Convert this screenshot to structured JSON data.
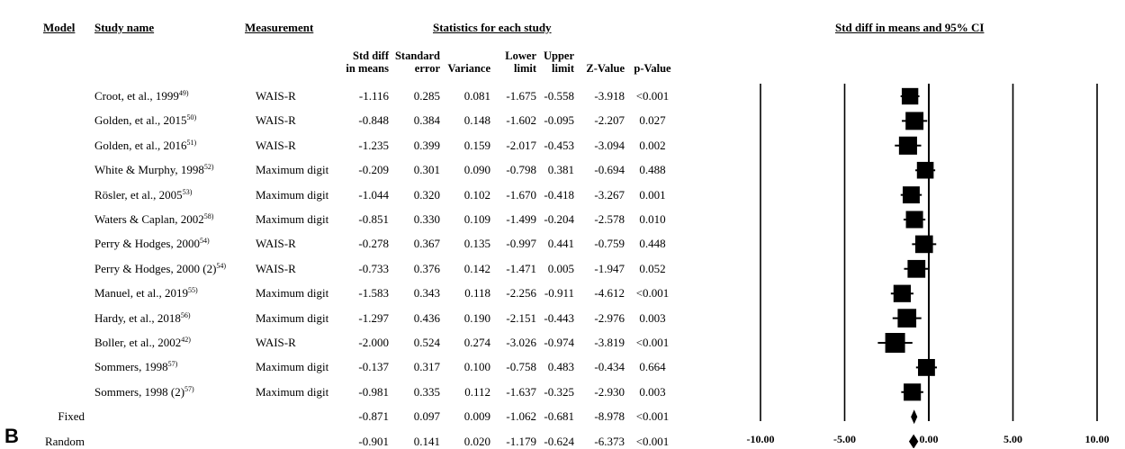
{
  "headers": {
    "model": "Model",
    "study_name": "Study name",
    "measurement": "Measurement",
    "statistics": "Statistics for each study",
    "plot": "Std diff in means and 95% CI"
  },
  "subheaders": {
    "std_diff": [
      "Std diff",
      "in means"
    ],
    "std_error": [
      "Standard",
      "error"
    ],
    "variance": "Variance",
    "lower": [
      "Lower",
      "limit"
    ],
    "upper": [
      "Upper",
      "limit"
    ],
    "z": "Z-Value",
    "p": "p-Value"
  },
  "panel_letter": "B",
  "rows": [
    {
      "model": "",
      "study": "Croot, et al., 1999",
      "ref": "49)",
      "measurement": "WAIS-R",
      "std_diff": "-1.116",
      "se": "0.285",
      "variance": "0.081",
      "lower": "-1.675",
      "upper": "-0.558",
      "z": "-3.918",
      "p": "<0.001"
    },
    {
      "model": "",
      "study": "Golden, et al., 2015",
      "ref": "50)",
      "measurement": "WAIS-R",
      "std_diff": "-0.848",
      "se": "0.384",
      "variance": "0.148",
      "lower": "-1.602",
      "upper": "-0.095",
      "z": "-2.207",
      "p": "0.027"
    },
    {
      "model": "",
      "study": "Golden, et al., 2016",
      "ref": "51)",
      "measurement": "WAIS-R",
      "std_diff": "-1.235",
      "se": "0.399",
      "variance": "0.159",
      "lower": "-2.017",
      "upper": "-0.453",
      "z": "-3.094",
      "p": "0.002"
    },
    {
      "model": "",
      "study": "White & Murphy, 1998",
      "ref": "52)",
      "measurement": "Maximum digit",
      "std_diff": "-0.209",
      "se": "0.301",
      "variance": "0.090",
      "lower": "-0.798",
      "upper": "0.381",
      "z": "-0.694",
      "p": "0.488"
    },
    {
      "model": "",
      "study": "Rösler, et al., 2005",
      "ref": "53)",
      "measurement": "Maximum digit",
      "std_diff": "-1.044",
      "se": "0.320",
      "variance": "0.102",
      "lower": "-1.670",
      "upper": "-0.418",
      "z": "-3.267",
      "p": "0.001"
    },
    {
      "model": "",
      "study": "Waters & Caplan, 2002",
      "ref": "58)",
      "measurement": "Maximum digit",
      "std_diff": "-0.851",
      "se": "0.330",
      "variance": "0.109",
      "lower": "-1.499",
      "upper": "-0.204",
      "z": "-2.578",
      "p": "0.010"
    },
    {
      "model": "",
      "study": "Perry & Hodges, 2000",
      "ref": "54)",
      "measurement": "WAIS-R",
      "std_diff": "-0.278",
      "se": "0.367",
      "variance": "0.135",
      "lower": "-0.997",
      "upper": "0.441",
      "z": "-0.759",
      "p": "0.448"
    },
    {
      "model": "",
      "study": "Perry & Hodges, 2000 (2)",
      "ref": "54)",
      "measurement": "WAIS-R",
      "std_diff": "-0.733",
      "se": "0.376",
      "variance": "0.142",
      "lower": "-1.471",
      "upper": "0.005",
      "z": "-1.947",
      "p": "0.052"
    },
    {
      "model": "",
      "study": "Manuel, et al., 2019",
      "ref": "55)",
      "measurement": "Maximum digit",
      "std_diff": "-1.583",
      "se": "0.343",
      "variance": "0.118",
      "lower": "-2.256",
      "upper": "-0.911",
      "z": "-4.612",
      "p": "<0.001"
    },
    {
      "model": "",
      "study": "Hardy, et al., 2018",
      "ref": "56)",
      "measurement": "Maximum digit",
      "std_diff": "-1.297",
      "se": "0.436",
      "variance": "0.190",
      "lower": "-2.151",
      "upper": "-0.443",
      "z": "-2.976",
      "p": "0.003"
    },
    {
      "model": "",
      "study": "Boller, et al., 2002",
      "ref": "42)",
      "measurement": "WAIS-R",
      "std_diff": "-2.000",
      "se": "0.524",
      "variance": "0.274",
      "lower": "-3.026",
      "upper": "-0.974",
      "z": "-3.819",
      "p": "<0.001"
    },
    {
      "model": "",
      "study": "Sommers, 1998",
      "ref": "57)",
      "measurement": "Maximum digit",
      "std_diff": "-0.137",
      "se": "0.317",
      "variance": "0.100",
      "lower": "-0.758",
      "upper": "0.483",
      "z": "-0.434",
      "p": "0.664"
    },
    {
      "model": "",
      "study": "Sommers, 1998 (2)",
      "ref": "57)",
      "measurement": "Maximum digit",
      "std_diff": "-0.981",
      "se": "0.335",
      "variance": "0.112",
      "lower": "-1.637",
      "upper": "-0.325",
      "z": "-2.930",
      "p": "0.003"
    },
    {
      "model": "Fixed",
      "study": "",
      "ref": "",
      "measurement": "",
      "std_diff": "-0.871",
      "se": "0.097",
      "variance": "0.009",
      "lower": "-1.062",
      "upper": "-0.681",
      "z": "-8.978",
      "p": "<0.001"
    },
    {
      "model": "Random",
      "study": "",
      "ref": "",
      "measurement": "",
      "std_diff": "-0.901",
      "se": "0.141",
      "variance": "0.020",
      "lower": "-1.179",
      "upper": "-0.624",
      "z": "-6.373",
      "p": "<0.001"
    }
  ],
  "chart_data": {
    "type": "forest",
    "title": "Std diff in means and 95% CI",
    "xlim": [
      -10,
      10
    ],
    "xticks": [
      -10,
      -5,
      0,
      5,
      10
    ],
    "xtick_labels": [
      "-10.00",
      "-5.00",
      "0.00",
      "5.00",
      "10.00"
    ],
    "studies": [
      {
        "name": "Croot, et al., 1999",
        "estimate": -1.116,
        "lower": -1.675,
        "upper": -0.558,
        "weight": 0.081
      },
      {
        "name": "Golden, et al., 2015",
        "estimate": -0.848,
        "lower": -1.602,
        "upper": -0.095,
        "weight": 0.148
      },
      {
        "name": "Golden, et al., 2016",
        "estimate": -1.235,
        "lower": -2.017,
        "upper": -0.453,
        "weight": 0.159
      },
      {
        "name": "White & Murphy, 1998",
        "estimate": -0.209,
        "lower": -0.798,
        "upper": 0.381,
        "weight": 0.09
      },
      {
        "name": "Rösler, et al., 2005",
        "estimate": -1.044,
        "lower": -1.67,
        "upper": -0.418,
        "weight": 0.102
      },
      {
        "name": "Waters & Caplan, 2002",
        "estimate": -0.851,
        "lower": -1.499,
        "upper": -0.204,
        "weight": 0.109
      },
      {
        "name": "Perry & Hodges, 2000",
        "estimate": -0.278,
        "lower": -0.997,
        "upper": 0.441,
        "weight": 0.135
      },
      {
        "name": "Perry & Hodges, 2000 (2)",
        "estimate": -0.733,
        "lower": -1.471,
        "upper": 0.005,
        "weight": 0.142
      },
      {
        "name": "Manuel, et al., 2019",
        "estimate": -1.583,
        "lower": -2.256,
        "upper": -0.911,
        "weight": 0.118
      },
      {
        "name": "Hardy, et al., 2018",
        "estimate": -1.297,
        "lower": -2.151,
        "upper": -0.443,
        "weight": 0.19
      },
      {
        "name": "Boller, et al., 2002",
        "estimate": -2.0,
        "lower": -3.026,
        "upper": -0.974,
        "weight": 0.274
      },
      {
        "name": "Sommers, 1998",
        "estimate": -0.137,
        "lower": -0.758,
        "upper": 0.483,
        "weight": 0.1
      },
      {
        "name": "Sommers, 1998 (2)",
        "estimate": -0.981,
        "lower": -1.637,
        "upper": -0.325,
        "weight": 0.112
      }
    ],
    "summary": [
      {
        "name": "Fixed",
        "estimate": -0.871,
        "lower": -1.062,
        "upper": -0.681
      },
      {
        "name": "Random",
        "estimate": -0.901,
        "lower": -1.179,
        "upper": -0.624
      }
    ]
  }
}
